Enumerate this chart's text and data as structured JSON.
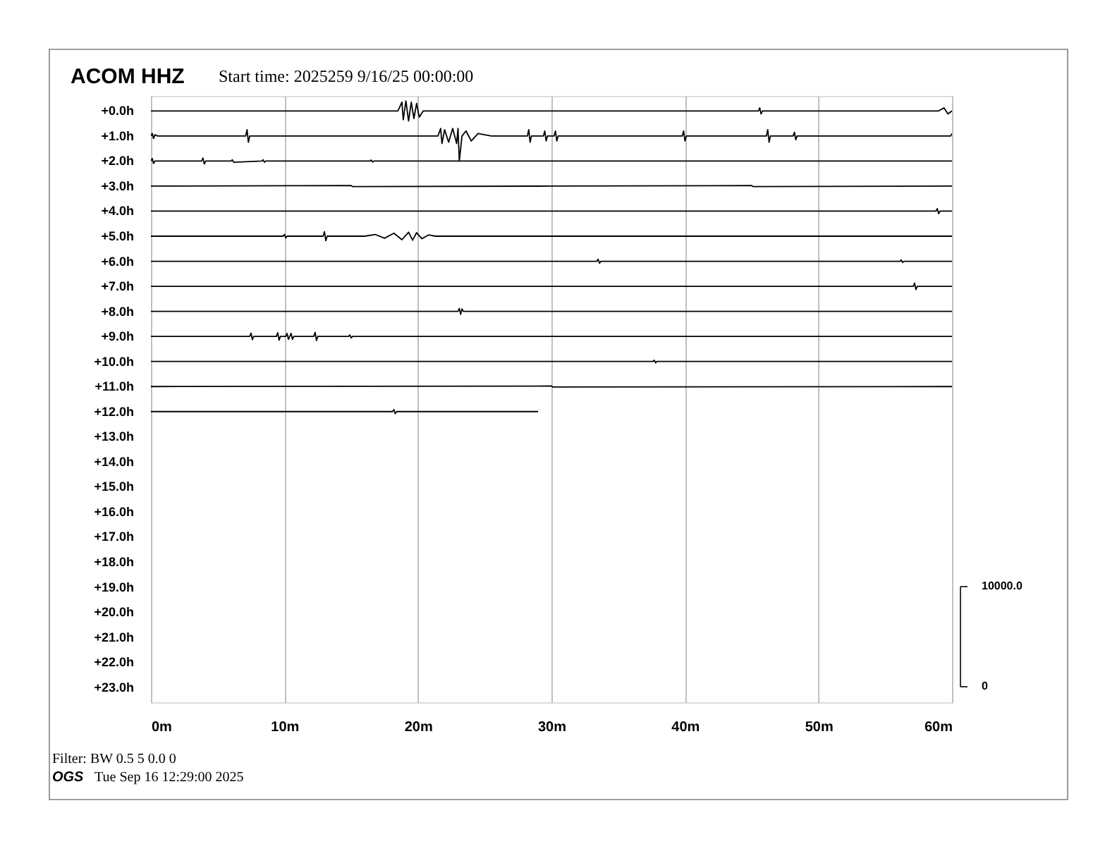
{
  "chart_data": {
    "type": "line",
    "title": "ACOM HHZ",
    "subtitle": "Start time: 2025259  9/16/25 00:00:00",
    "annotations": [
      "10000.0",
      "0",
      "Filter: BW 0.5 5 0.0 0",
      "OGS",
      "Tue Sep 16 12:29:00 2025"
    ],
    "xlim": [
      0,
      60
    ],
    "xticks": [
      {
        "value": 0,
        "label": "0m"
      },
      {
        "value": 10,
        "label": "10m"
      },
      {
        "value": 20,
        "label": "20m"
      },
      {
        "value": 30,
        "label": "30m"
      },
      {
        "value": 40,
        "label": "40m"
      },
      {
        "value": 50,
        "label": "50m"
      },
      {
        "value": 60,
        "label": "60m"
      }
    ],
    "ylim": [
      23.6,
      -0.6
    ],
    "yticks": [
      {
        "value": 0,
        "label": "+0.0h"
      },
      {
        "value": 1,
        "label": "+1.0h"
      },
      {
        "value": 2,
        "label": "+2.0h"
      },
      {
        "value": 3,
        "label": "+3.0h"
      },
      {
        "value": 4,
        "label": "+4.0h"
      },
      {
        "value": 5,
        "label": "+5.0h"
      },
      {
        "value": 6,
        "label": "+6.0h"
      },
      {
        "value": 7,
        "label": "+7.0h"
      },
      {
        "value": 8,
        "label": "+8.0h"
      },
      {
        "value": 9,
        "label": "+9.0h"
      },
      {
        "value": 10,
        "label": "+10.0h"
      },
      {
        "value": 11,
        "label": "+11.0h"
      },
      {
        "value": 12,
        "label": "+12.0h"
      },
      {
        "value": 13,
        "label": "+13.0h"
      },
      {
        "value": 14,
        "label": "+14.0h"
      },
      {
        "value": 15,
        "label": "+15.0h"
      },
      {
        "value": 16,
        "label": "+16.0h"
      },
      {
        "value": 17,
        "label": "+17.0h"
      },
      {
        "value": 18,
        "label": "+18.0h"
      },
      {
        "value": 19,
        "label": "+19.0h"
      },
      {
        "value": 20,
        "label": "+20.0h"
      },
      {
        "value": 21,
        "label": "+21.0h"
      },
      {
        "value": 22,
        "label": "+22.0h"
      },
      {
        "value": 23,
        "label": "+23.0h"
      }
    ],
    "grid": "x",
    "line_style": "solid",
    "series": [
      {
        "color": "#000000",
        "x": [
          0,
          18.5,
          18.8,
          18.9,
          19.1,
          19.3,
          19.5,
          19.7,
          19.9,
          20.1,
          20.4,
          45.5,
          45.6,
          45.7,
          45.8,
          59.0,
          59.4,
          59.7,
          60
        ],
        "values": [
          0,
          0,
          -0.35,
          0.35,
          -0.4,
          0.4,
          -0.35,
          0.3,
          -0.3,
          0.25,
          0,
          0,
          -0.12,
          0.12,
          0,
          0,
          -0.12,
          0.12,
          0
        ]
      },
      {
        "color": "#000000",
        "x": [
          0,
          0.1,
          0.2,
          0.3,
          0.5,
          7.1,
          7.2,
          7.3,
          7.4,
          21.5,
          21.7,
          21.8,
          22.0,
          22.3,
          22.6,
          22.9,
          23.0,
          23.1,
          23.3,
          23.6,
          24.0,
          24.5,
          25.5,
          28.2,
          28.3,
          28.4,
          28.5,
          29.4,
          29.5,
          29.6,
          29.7,
          30.2,
          30.3,
          30.4,
          30.5,
          39.8,
          39.9,
          40.0,
          40.1,
          46.1,
          46.2,
          46.3,
          46.4,
          48.1,
          48.2,
          48.3,
          48.4,
          59.9,
          60
        ],
        "values": [
          1,
          0.9,
          1.1,
          0.95,
          1,
          1,
          0.75,
          1.25,
          1,
          1,
          0.7,
          1.3,
          0.75,
          1.25,
          0.7,
          1.3,
          0.7,
          2.0,
          1,
          0.8,
          1.2,
          0.9,
          1,
          1,
          0.75,
          1.25,
          1,
          1,
          0.8,
          1.2,
          1,
          1,
          0.8,
          1.2,
          1,
          1,
          0.8,
          1.2,
          1,
          1,
          0.75,
          1.25,
          1,
          1,
          0.85,
          1.15,
          1,
          1,
          0.9
        ]
      },
      {
        "color": "#000000",
        "x": [
          0,
          0.1,
          0.2,
          0.3,
          3.8,
          3.9,
          4.0,
          4.1,
          6,
          6.1,
          6.2,
          8.3,
          8.4,
          8.5,
          8.6,
          16.4,
          16.5,
          16.6,
          16.7,
          60
        ],
        "values": [
          2,
          1.9,
          2.1,
          2,
          2,
          1.88,
          2.12,
          2,
          2,
          1.95,
          2.05,
          2,
          1.95,
          2.05,
          2,
          2,
          1.96,
          2.04,
          2,
          2
        ]
      },
      {
        "color": "#000000",
        "x": [
          0,
          15,
          15.1,
          30,
          45,
          45.1,
          60
        ],
        "values": [
          3,
          2.98,
          3.02,
          3,
          2.98,
          3.02,
          3
        ]
      },
      {
        "color": "#000000",
        "x": [
          0,
          58.8,
          58.9,
          59.0,
          59.1,
          60
        ],
        "values": [
          4,
          4,
          3.9,
          4.1,
          4,
          4
        ]
      },
      {
        "color": "#000000",
        "x": [
          0,
          9.9,
          10.0,
          10.1,
          10.2,
          12.9,
          13.0,
          13.1,
          13.2,
          16.0,
          16.8,
          17.5,
          18.2,
          18.8,
          19.3,
          19.6,
          19.9,
          20.3,
          20.8,
          21.3,
          60
        ],
        "values": [
          5,
          5,
          4.93,
          5.07,
          5,
          5,
          4.82,
          5.18,
          5,
          5,
          4.93,
          5.08,
          4.88,
          5.14,
          4.84,
          5.16,
          4.86,
          5.1,
          4.95,
          5,
          5
        ]
      },
      {
        "color": "#000000",
        "x": [
          0,
          33.4,
          33.5,
          33.6,
          33.7,
          56.1,
          56.2,
          56.3,
          56.4,
          60
        ],
        "values": [
          6,
          6,
          5.92,
          6.08,
          6,
          6,
          5.95,
          6.05,
          6,
          6
        ]
      },
      {
        "color": "#000000",
        "x": [
          0,
          57.1,
          57.2,
          57.3,
          57.4,
          60
        ],
        "values": [
          7,
          7,
          6.87,
          7.13,
          7,
          7
        ]
      },
      {
        "color": "#000000",
        "x": [
          0,
          23.0,
          23.1,
          23.2,
          23.3,
          23.4,
          60
        ],
        "values": [
          8,
          8,
          7.88,
          8.12,
          7.9,
          8,
          8
        ]
      },
      {
        "color": "#000000",
        "x": [
          0,
          7.4,
          7.5,
          7.6,
          7.7,
          9.4,
          9.5,
          9.6,
          9.7,
          10.1,
          10.2,
          10.3,
          10.5,
          10.6,
          10.7,
          12.2,
          12.3,
          12.4,
          12.5,
          14.8,
          14.9,
          15.0,
          15.1,
          60
        ],
        "values": [
          9,
          9,
          8.87,
          9.13,
          9,
          9,
          8.85,
          9.15,
          9,
          9,
          8.88,
          9.12,
          8.88,
          9.12,
          9,
          9,
          8.84,
          9.16,
          9,
          9,
          8.94,
          9.06,
          9,
          9
        ]
      },
      {
        "color": "#000000",
        "x": [
          0,
          37.6,
          37.7,
          37.8,
          37.9,
          60
        ],
        "values": [
          10,
          10,
          9.95,
          10.05,
          10,
          10
        ]
      },
      {
        "color": "#000000",
        "x": [
          0,
          30,
          30.1,
          60
        ],
        "values": [
          11,
          10.98,
          11.02,
          11
        ]
      },
      {
        "color": "#000000",
        "x": [
          0,
          18.1,
          18.2,
          18.3,
          18.4,
          29
        ],
        "values": [
          12,
          12,
          11.92,
          12.08,
          12,
          12
        ]
      }
    ]
  }
}
